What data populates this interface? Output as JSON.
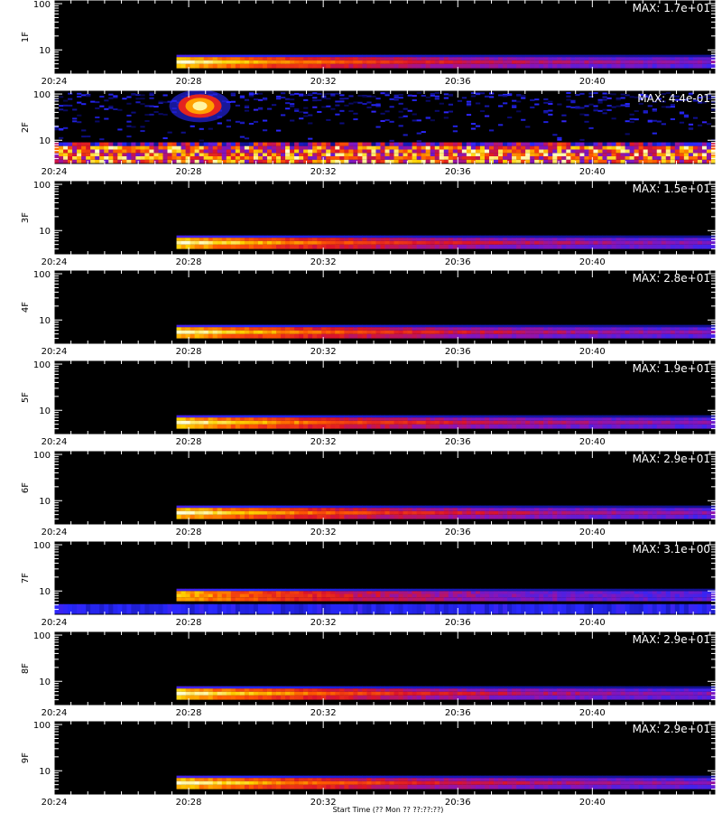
{
  "figure": {
    "background": "#000000",
    "frame_color": "#ffffff",
    "xlabel": "Start Time (?? Mon ?? ??:??:??)"
  },
  "chart_data": [
    {
      "type": "heatmap",
      "ylabel": "1F",
      "max_label": "MAX: 1.7e+01",
      "band": [
        4,
        7
      ],
      "x_range": [
        "20:24",
        "20:43:40"
      ],
      "x_ticks": [
        "20:24",
        "20:28",
        "20:32",
        "20:36",
        "20:40"
      ],
      "y_ticks": [
        "100",
        "10"
      ],
      "y_scale": "log",
      "onset": "20:27:40",
      "peak": "20:28:00"
    },
    {
      "type": "heatmap",
      "ylabel": "2F",
      "max_label": "MAX: 4.4e-01",
      "band": [
        3,
        8
      ],
      "x_range": [
        "20:24",
        "20:43:40"
      ],
      "x_ticks": [
        "20:24",
        "20:28",
        "20:32",
        "20:36",
        "20:40"
      ],
      "y_ticks": [
        "100",
        "10"
      ],
      "y_scale": "log",
      "onset": "20:24:00",
      "peak": "20:28:00",
      "blob": {
        "time": "20:28:20",
        "y": 55
      }
    },
    {
      "type": "heatmap",
      "ylabel": "3F",
      "max_label": "MAX: 1.5e+01",
      "band": [
        4,
        7
      ],
      "x_range": [
        "20:24",
        "20:43:40"
      ],
      "x_ticks": [
        "20:24",
        "20:28",
        "20:32",
        "20:36",
        "20:40"
      ],
      "y_ticks": [
        "100",
        "10"
      ],
      "y_scale": "log",
      "onset": "20:27:40",
      "peak": "20:28:00"
    },
    {
      "type": "heatmap",
      "ylabel": "4F",
      "max_label": "MAX: 2.8e+01",
      "band": [
        4,
        7
      ],
      "x_range": [
        "20:24",
        "20:43:40"
      ],
      "x_ticks": [
        "20:24",
        "20:28",
        "20:32",
        "20:36",
        "20:40"
      ],
      "y_ticks": [
        "100",
        "10"
      ],
      "y_scale": "log",
      "onset": "20:27:40",
      "peak": "20:28:00"
    },
    {
      "type": "heatmap",
      "ylabel": "5F",
      "max_label": "MAX: 1.9e+01",
      "band": [
        4,
        7
      ],
      "x_range": [
        "20:24",
        "20:43:40"
      ],
      "x_ticks": [
        "20:24",
        "20:28",
        "20:32",
        "20:36",
        "20:40"
      ],
      "y_ticks": [
        "100",
        "10"
      ],
      "y_scale": "log",
      "onset": "20:27:40",
      "peak": "20:28:00"
    },
    {
      "type": "heatmap",
      "ylabel": "6F",
      "max_label": "MAX: 2.9e+01",
      "band": [
        4,
        7
      ],
      "x_range": [
        "20:24",
        "20:43:40"
      ],
      "x_ticks": [
        "20:24",
        "20:28",
        "20:32",
        "20:36",
        "20:40"
      ],
      "y_ticks": [
        "100",
        "10"
      ],
      "y_scale": "log",
      "onset": "20:27:40",
      "peak": "20:28:00"
    },
    {
      "type": "heatmap",
      "ylabel": "7F",
      "max_label": "MAX: 3.1e+00",
      "band": [
        6,
        10
      ],
      "x_range": [
        "20:24",
        "20:43:40"
      ],
      "x_ticks": [
        "20:24",
        "20:28",
        "20:32",
        "20:36",
        "20:40"
      ],
      "y_ticks": [
        "100",
        "10"
      ],
      "y_scale": "log",
      "onset": "20:27:40",
      "peak": "20:28:00"
    },
    {
      "type": "heatmap",
      "ylabel": "8F",
      "max_label": "MAX: 2.9e+01",
      "band": [
        4,
        7
      ],
      "x_range": [
        "20:24",
        "20:43:40"
      ],
      "x_ticks": [
        "20:24",
        "20:28",
        "20:32",
        "20:36",
        "20:40"
      ],
      "y_ticks": [
        "100",
        "10"
      ],
      "y_scale": "log",
      "onset": "20:27:40",
      "peak": "20:28:00"
    },
    {
      "type": "heatmap",
      "ylabel": "9F",
      "max_label": "MAX: 2.9e+01",
      "band": [
        4,
        7
      ],
      "x_range": [
        "20:24",
        "20:43:40"
      ],
      "x_ticks": [
        "20:24",
        "20:28",
        "20:32",
        "20:36",
        "20:40"
      ],
      "y_ticks": [
        "100",
        "10"
      ],
      "y_scale": "log",
      "onset": "20:27:40",
      "peak": "20:28:00"
    }
  ]
}
